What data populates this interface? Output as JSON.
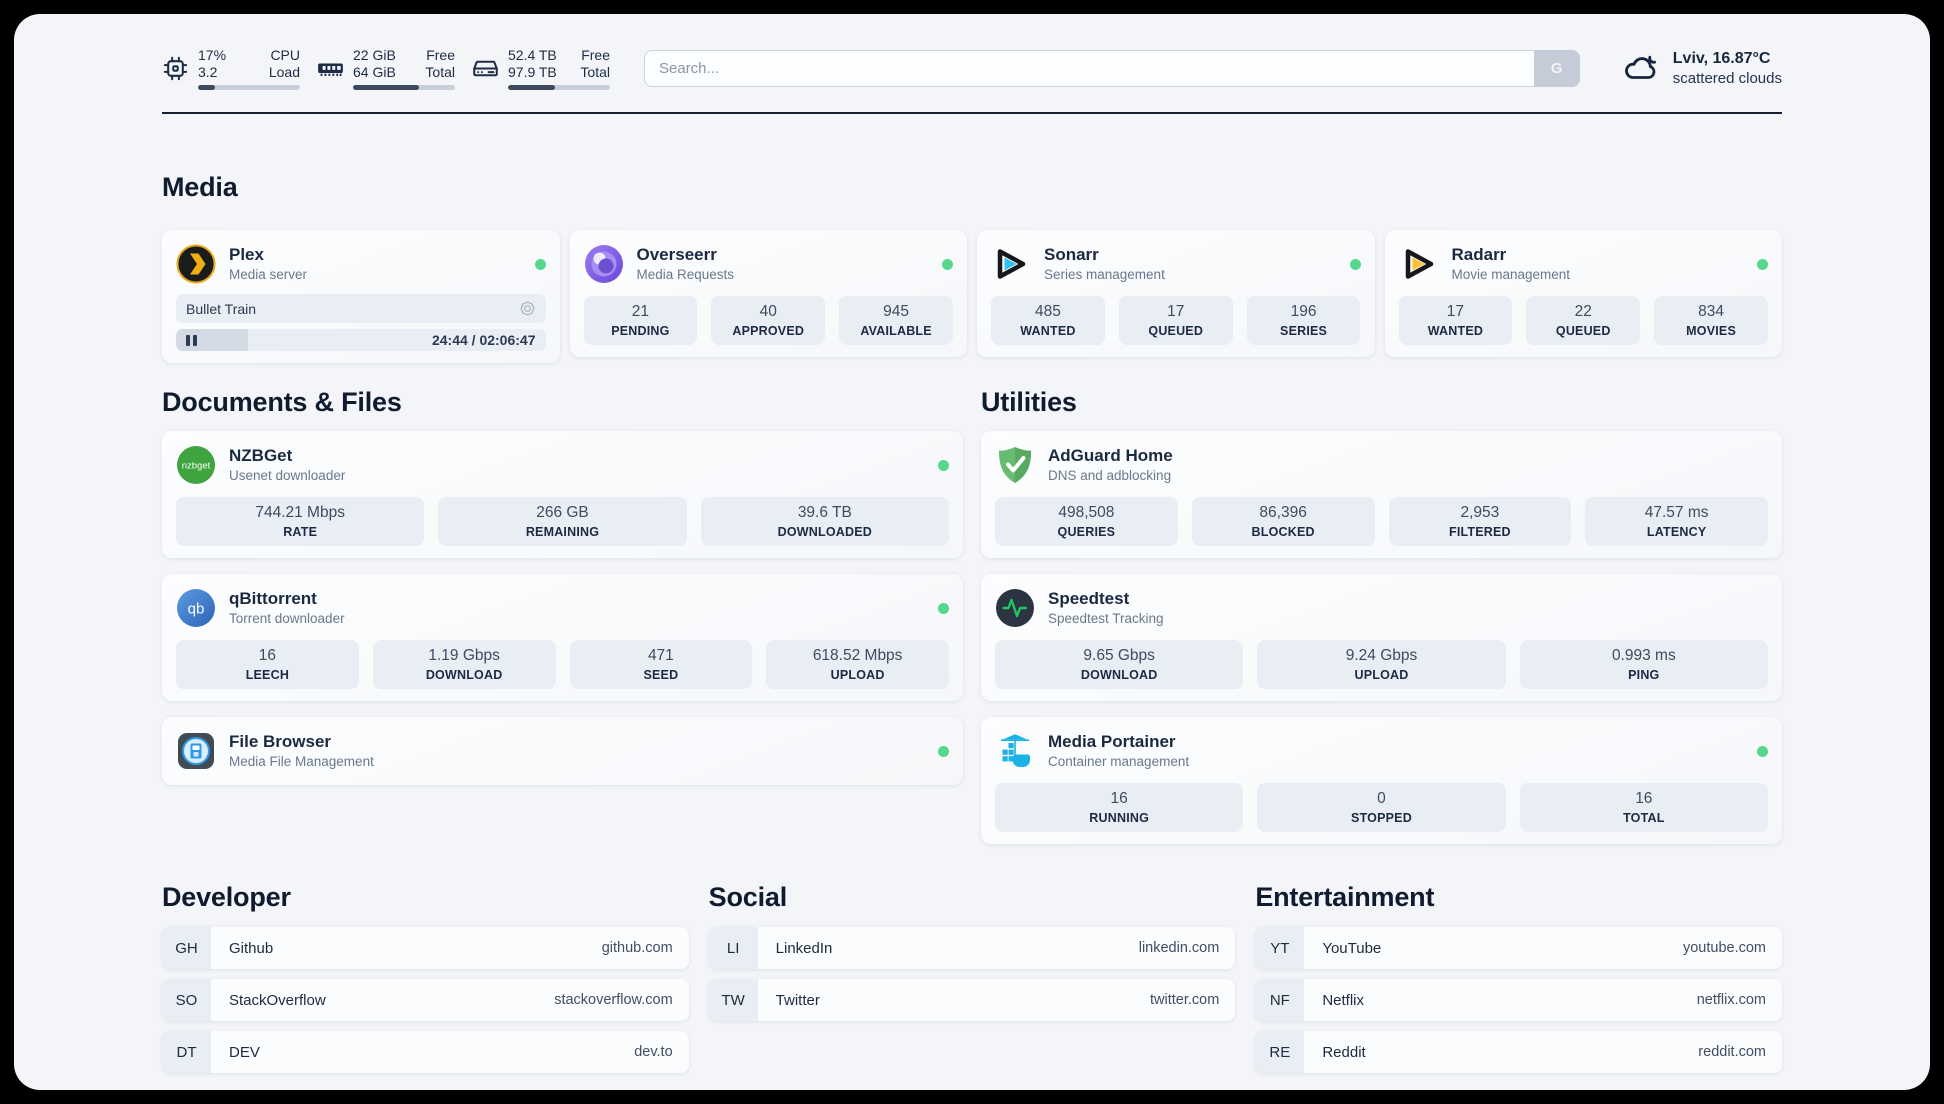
{
  "topbar": {
    "cpu": {
      "values": [
        "17%",
        "3.2"
      ],
      "labels": [
        "CPU",
        "Load"
      ],
      "used_percent": 17
    },
    "memory": {
      "values": [
        "22 GiB",
        "64 GiB"
      ],
      "labels": [
        "Free",
        "Total"
      ],
      "used_percent": 65
    },
    "storage": {
      "values": [
        "52.4 TB",
        "97.9 TB"
      ],
      "labels": [
        "Free",
        "Total"
      ],
      "used_percent": 46
    },
    "search": {
      "placeholder": "Search...",
      "provider_button": "G"
    },
    "weather": {
      "location_temperature": "Lviv, 16.87°C",
      "condition": "scattered clouds"
    }
  },
  "sections": {
    "media": {
      "title": "Media",
      "cards": [
        {
          "icon": "plex-icon",
          "name": "Plex",
          "subtitle": "Media server",
          "online": true,
          "now_playing": {
            "title": "Bullet Train",
            "time": "24:44 / 02:06:47",
            "progress_percent": 19.5,
            "state": "paused"
          }
        },
        {
          "icon": "overseerr-icon",
          "name": "Overseerr",
          "subtitle": "Media Requests",
          "online": true,
          "stats": [
            {
              "value": "21",
              "label": "PENDING"
            },
            {
              "value": "40",
              "label": "APPROVED"
            },
            {
              "value": "945",
              "label": "AVAILABLE"
            }
          ]
        },
        {
          "icon": "sonarr-icon",
          "name": "Sonarr",
          "subtitle": "Series management",
          "online": true,
          "stats": [
            {
              "value": "485",
              "label": "WANTED"
            },
            {
              "value": "17",
              "label": "QUEUED"
            },
            {
              "value": "196",
              "label": "SERIES"
            }
          ]
        },
        {
          "icon": "radarr-icon",
          "name": "Radarr",
          "subtitle": "Movie management",
          "online": true,
          "stats": [
            {
              "value": "17",
              "label": "WANTED"
            },
            {
              "value": "22",
              "label": "QUEUED"
            },
            {
              "value": "834",
              "label": "MOVIES"
            }
          ]
        }
      ]
    },
    "documents": {
      "title": "Documents & Files",
      "cards": [
        {
          "icon": "nzbget-icon",
          "name": "NZBGet",
          "subtitle": "Usenet downloader",
          "online": true,
          "stats": [
            {
              "value": "744.21 Mbps",
              "label": "RATE"
            },
            {
              "value": "266 GB",
              "label": "REMAINING"
            },
            {
              "value": "39.6 TB",
              "label": "DOWNLOADED"
            }
          ]
        },
        {
          "icon": "qbittorrent-icon",
          "name": "qBittorrent",
          "subtitle": "Torrent downloader",
          "online": true,
          "stats": [
            {
              "value": "16",
              "label": "LEECH"
            },
            {
              "value": "1.19 Gbps",
              "label": "DOWNLOAD"
            },
            {
              "value": "471",
              "label": "SEED"
            },
            {
              "value": "618.52 Mbps",
              "label": "UPLOAD"
            }
          ]
        },
        {
          "icon": "filebrowser-icon",
          "name": "File Browser",
          "subtitle": "Media File Management",
          "online": true
        }
      ]
    },
    "utilities": {
      "title": "Utilities",
      "cards": [
        {
          "icon": "adguard-icon",
          "name": "AdGuard Home",
          "subtitle": "DNS and adblocking",
          "online": false,
          "stats": [
            {
              "value": "498,508",
              "label": "QUERIES"
            },
            {
              "value": "86,396",
              "label": "BLOCKED"
            },
            {
              "value": "2,953",
              "label": "FILTERED"
            },
            {
              "value": "47.57 ms",
              "label": "LATENCY"
            }
          ]
        },
        {
          "icon": "speedtest-icon",
          "name": "Speedtest",
          "subtitle": "Speedtest Tracking",
          "online": false,
          "stats": [
            {
              "value": "9.65 Gbps",
              "label": "DOWNLOAD"
            },
            {
              "value": "9.24 Gbps",
              "label": "UPLOAD"
            },
            {
              "value": "0.993 ms",
              "label": "PING"
            }
          ]
        },
        {
          "icon": "portainer-icon",
          "name": "Media Portainer",
          "subtitle": "Container management",
          "online": true,
          "stats": [
            {
              "value": "16",
              "label": "RUNNING"
            },
            {
              "value": "0",
              "label": "STOPPED"
            },
            {
              "value": "16",
              "label": "TOTAL"
            }
          ]
        }
      ]
    }
  },
  "bookmarks": [
    {
      "title": "Developer",
      "links": [
        {
          "abbr": "GH",
          "name": "Github",
          "url": "github.com"
        },
        {
          "abbr": "SO",
          "name": "StackOverflow",
          "url": "stackoverflow.com"
        },
        {
          "abbr": "DT",
          "name": "DEV",
          "url": "dev.to"
        }
      ]
    },
    {
      "title": "Social",
      "links": [
        {
          "abbr": "LI",
          "name": "LinkedIn",
          "url": "linkedin.com"
        },
        {
          "abbr": "TW",
          "name": "Twitter",
          "url": "twitter.com"
        }
      ]
    },
    {
      "title": "Entertainment",
      "links": [
        {
          "abbr": "YT",
          "name": "YouTube",
          "url": "youtube.com"
        },
        {
          "abbr": "NF",
          "name": "Netflix",
          "url": "netflix.com"
        },
        {
          "abbr": "RE",
          "name": "Reddit",
          "url": "reddit.com"
        }
      ]
    }
  ],
  "colors": {
    "status_online": "#55d78c",
    "text_dark": "#1b2940"
  }
}
